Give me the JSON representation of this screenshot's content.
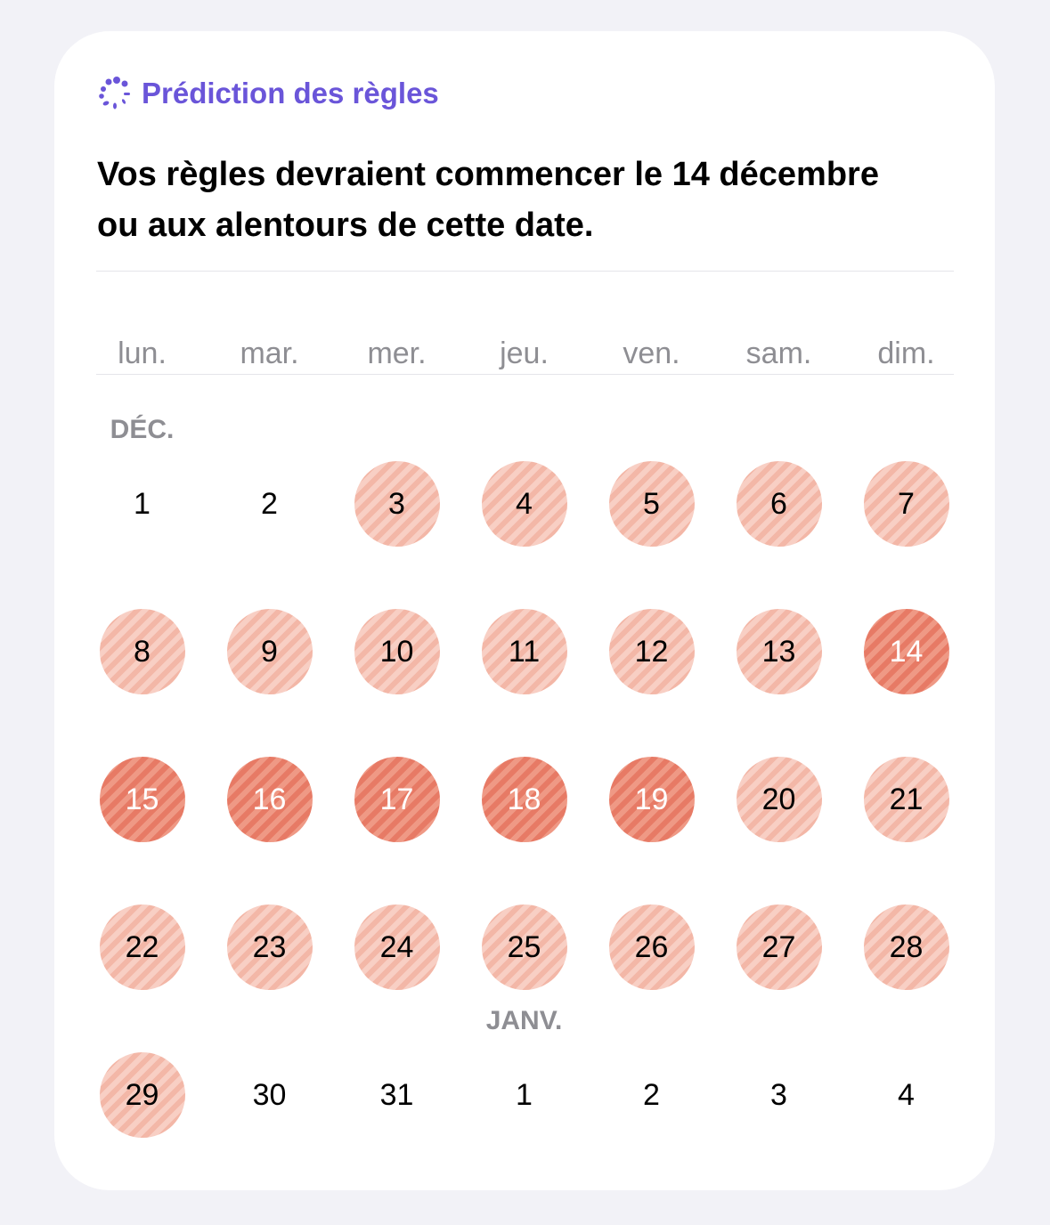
{
  "header": {
    "icon": "sparkle-dots-icon",
    "title": "Prédiction des règles",
    "accent": "#6a55d9"
  },
  "headline": "Vos règles devraient commencer le 14 décembre ou aux alentours de cette date.",
  "weekdays": [
    "lun.",
    "mar.",
    "mer.",
    "jeu.",
    "ven.",
    "sam.",
    "dim."
  ],
  "colors": {
    "predicted_light": "#f5c0b2",
    "predicted_dark": "#ea846f"
  },
  "weeks": [
    [
      {
        "d": "1",
        "s": "none",
        "m": "DÉC."
      },
      {
        "d": "2",
        "s": "none"
      },
      {
        "d": "3",
        "s": "light"
      },
      {
        "d": "4",
        "s": "light"
      },
      {
        "d": "5",
        "s": "light"
      },
      {
        "d": "6",
        "s": "light"
      },
      {
        "d": "7",
        "s": "light"
      }
    ],
    [
      {
        "d": "8",
        "s": "light"
      },
      {
        "d": "9",
        "s": "light"
      },
      {
        "d": "10",
        "s": "light"
      },
      {
        "d": "11",
        "s": "light"
      },
      {
        "d": "12",
        "s": "light"
      },
      {
        "d": "13",
        "s": "light"
      },
      {
        "d": "14",
        "s": "dark"
      }
    ],
    [
      {
        "d": "15",
        "s": "dark"
      },
      {
        "d": "16",
        "s": "dark"
      },
      {
        "d": "17",
        "s": "dark"
      },
      {
        "d": "18",
        "s": "dark"
      },
      {
        "d": "19",
        "s": "dark"
      },
      {
        "d": "20",
        "s": "light"
      },
      {
        "d": "21",
        "s": "light"
      }
    ],
    [
      {
        "d": "22",
        "s": "light"
      },
      {
        "d": "23",
        "s": "light"
      },
      {
        "d": "24",
        "s": "light"
      },
      {
        "d": "25",
        "s": "light"
      },
      {
        "d": "26",
        "s": "light"
      },
      {
        "d": "27",
        "s": "light"
      },
      {
        "d": "28",
        "s": "light"
      }
    ],
    [
      {
        "d": "29",
        "s": "light"
      },
      {
        "d": "30",
        "s": "none"
      },
      {
        "d": "31",
        "s": "none"
      },
      {
        "d": "1",
        "s": "none",
        "m": "JANV."
      },
      {
        "d": "2",
        "s": "none"
      },
      {
        "d": "3",
        "s": "none"
      },
      {
        "d": "4",
        "s": "none"
      }
    ]
  ]
}
